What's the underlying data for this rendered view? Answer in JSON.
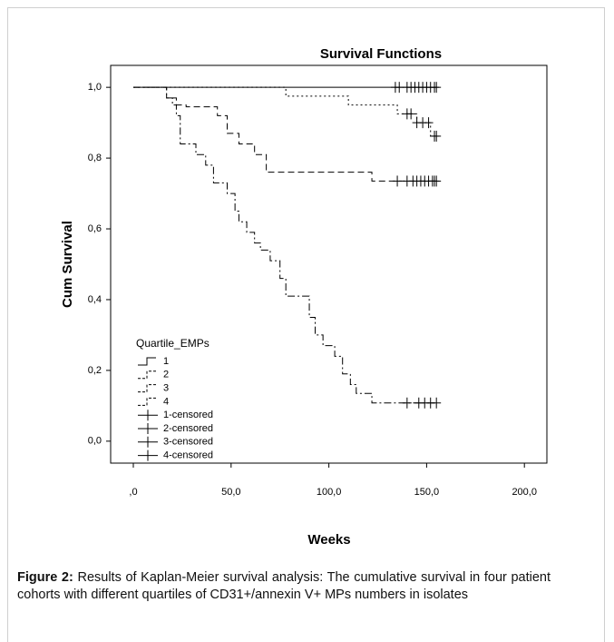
{
  "chart_data": {
    "type": "kaplan-meier",
    "title": "Survival Functions",
    "x_label": "Weeks",
    "y_label": "Cum Survival",
    "legend_title": "Quartile_EMPs",
    "xlim": [
      -11.6,
      211.5
    ],
    "ylim": [
      -0.062,
      1.062
    ],
    "xticks": [
      {
        "value": 0,
        "label": ",0"
      },
      {
        "value": 50,
        "label": "50,0"
      },
      {
        "value": 100,
        "label": "100,0"
      },
      {
        "value": 150,
        "label": "150,0"
      },
      {
        "value": 200,
        "label": "200,0"
      }
    ],
    "yticks": [
      {
        "value": 0,
        "label": "0,0"
      },
      {
        "value": 0.2,
        "label": "0,2"
      },
      {
        "value": 0.4,
        "label": "0,4"
      },
      {
        "value": 0.6,
        "label": "0,6"
      },
      {
        "value": 0.8,
        "label": "0,8"
      },
      {
        "value": 1.0,
        "label": "1,0"
      }
    ],
    "series": [
      {
        "name": "1",
        "style": "step",
        "color": "#000000",
        "dash": "none",
        "x": [
          0,
          155
        ],
        "values": [
          1.0,
          1.0
        ]
      },
      {
        "name": "2",
        "style": "step",
        "color": "#000000",
        "dash": "2,3",
        "x": [
          0,
          78,
          110,
          135,
          145,
          152,
          155
        ],
        "values": [
          1.0,
          0.975,
          0.95,
          0.925,
          0.9,
          0.862,
          0.862
        ]
      },
      {
        "name": "3",
        "style": "step",
        "color": "#000000",
        "dash": "7,4",
        "x": [
          0,
          17,
          22,
          27,
          43,
          48,
          54,
          62,
          68,
          122,
          155
        ],
        "values": [
          1.0,
          0.97,
          0.95,
          0.945,
          0.92,
          0.87,
          0.84,
          0.81,
          0.76,
          0.735,
          0.735
        ]
      },
      {
        "name": "4",
        "style": "step",
        "color": "#000000",
        "dash": "8,3,2,3",
        "x": [
          0,
          17,
          20,
          22,
          24,
          32,
          37,
          41,
          48,
          52,
          54,
          58,
          62,
          65,
          70,
          75,
          78,
          90,
          93,
          97,
          103,
          107,
          111,
          114,
          122,
          155
        ],
        "values": [
          1.0,
          0.97,
          0.95,
          0.92,
          0.84,
          0.81,
          0.78,
          0.73,
          0.7,
          0.65,
          0.62,
          0.59,
          0.56,
          0.54,
          0.51,
          0.46,
          0.41,
          0.35,
          0.3,
          0.27,
          0.24,
          0.19,
          0.16,
          0.135,
          0.108,
          0.108
        ]
      },
      {
        "name": "1-censored",
        "style": "censored",
        "color": "#000000",
        "x": [
          134,
          136,
          140,
          142,
          144,
          146,
          148,
          150,
          152,
          154,
          155
        ],
        "values": [
          1.0,
          1.0,
          1.0,
          1.0,
          1.0,
          1.0,
          1.0,
          1.0,
          1.0,
          1.0,
          1.0
        ]
      },
      {
        "name": "2-censored",
        "style": "censored",
        "color": "#000000",
        "x": [
          140,
          142,
          145,
          148,
          151,
          154,
          155
        ],
        "values": [
          0.925,
          0.925,
          0.9,
          0.9,
          0.9,
          0.862,
          0.862
        ]
      },
      {
        "name": "3-censored",
        "style": "censored",
        "color": "#000000",
        "x": [
          135,
          140,
          143,
          145,
          147,
          149,
          151,
          153,
          154,
          155
        ],
        "values": [
          0.735,
          0.735,
          0.735,
          0.735,
          0.735,
          0.735,
          0.735,
          0.735,
          0.735,
          0.735
        ]
      },
      {
        "name": "4-censored",
        "style": "censored",
        "color": "#000000",
        "x": [
          140,
          146,
          149,
          152,
          155
        ],
        "values": [
          0.108,
          0.108,
          0.108,
          0.108,
          0.108
        ]
      }
    ]
  },
  "caption": {
    "label": "Figure 2:",
    "text": " Results of Kaplan-Meier survival analysis: The cumulative survival in four patient cohorts with different quartiles of CD31+/annexin V+ MPs numbers in isolates"
  }
}
